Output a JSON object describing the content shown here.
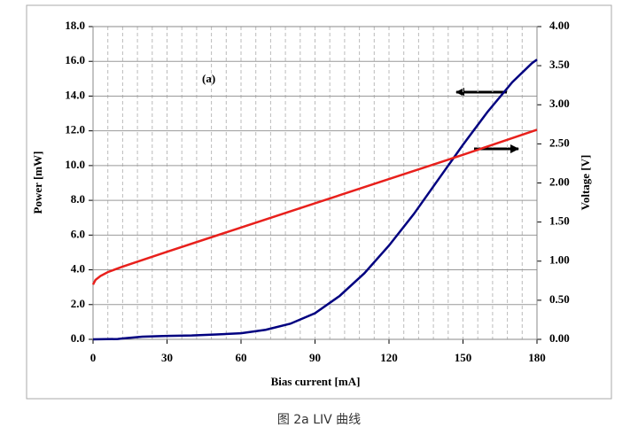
{
  "chart_data": {
    "type": "line",
    "annotation": "(a)",
    "caption": "图 2a LIV 曲线",
    "xlabel": "Bias current [mA]",
    "ylabel": "Power [mW]",
    "y2label": "Voltage [V]",
    "xlim": [
      0,
      180
    ],
    "xticks": [
      0,
      30,
      60,
      90,
      120,
      150,
      180
    ],
    "ylim": [
      0,
      18
    ],
    "yticks": [
      {
        "value": 0,
        "label": "0.0"
      },
      {
        "value": 2,
        "label": "2.0"
      },
      {
        "value": 4,
        "label": "4.0"
      },
      {
        "value": 6,
        "label": "6.0"
      },
      {
        "value": 8,
        "label": "8.0"
      },
      {
        "value": 10,
        "label": "10.0"
      },
      {
        "value": 12,
        "label": "12.0"
      },
      {
        "value": 14,
        "label": "14.0"
      },
      {
        "value": 16,
        "label": "16.0"
      },
      {
        "value": 18,
        "label": "18.0"
      }
    ],
    "y2lim": [
      0,
      4
    ],
    "y2ticks": [
      {
        "value": 0,
        "label": "0.00"
      },
      {
        "value": 0.5,
        "label": "0.50"
      },
      {
        "value": 1,
        "label": "1.00"
      },
      {
        "value": 1.5,
        "label": "1.50"
      },
      {
        "value": 2,
        "label": "2.00"
      },
      {
        "value": 2.5,
        "label": "2.50"
      },
      {
        "value": 3,
        "label": "3.00"
      },
      {
        "value": 3.5,
        "label": "3.50"
      },
      {
        "value": 4,
        "label": "4.00"
      }
    ],
    "grid": true,
    "series": [
      {
        "color": "#000080",
        "x": [
          0,
          10,
          12,
          20,
          30,
          40,
          50,
          60,
          70,
          80,
          90,
          100,
          110,
          120,
          130,
          140,
          150,
          160,
          170,
          178,
          180
        ],
        "values": [
          0,
          0.02,
          0.05,
          0.15,
          0.2,
          0.22,
          0.28,
          0.35,
          0.55,
          0.9,
          1.5,
          2.5,
          3.8,
          5.4,
          7.2,
          9.2,
          11.2,
          13.1,
          14.8,
          15.9,
          16.1
        ]
      },
      {
        "color": "#e8201c",
        "axis": "y2",
        "x": [
          0,
          1,
          3,
          6,
          12,
          30,
          60,
          90,
          120,
          150,
          180
        ],
        "values": [
          0.7,
          0.76,
          0.81,
          0.86,
          0.93,
          1.12,
          1.43,
          1.74,
          2.05,
          2.36,
          2.68
        ]
      }
    ]
  }
}
